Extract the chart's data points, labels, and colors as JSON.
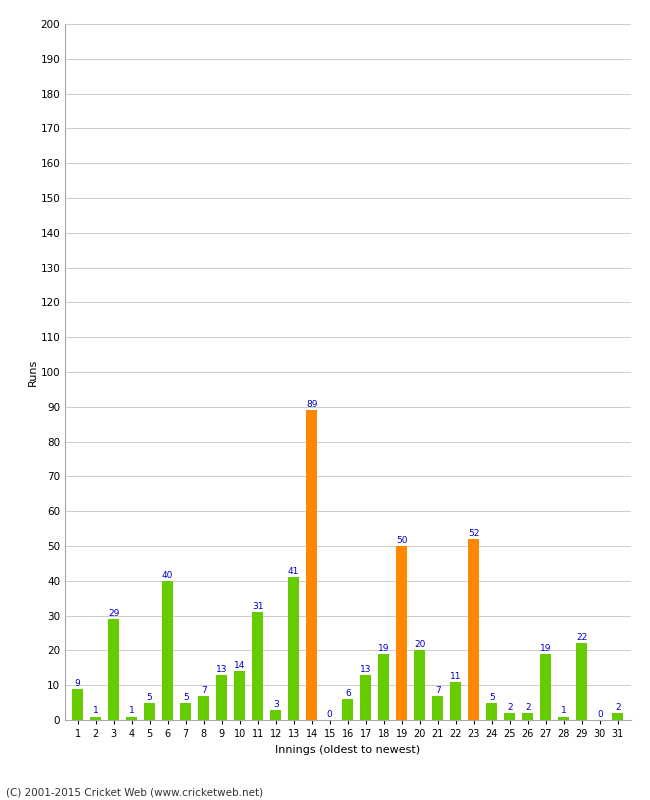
{
  "innings": [
    1,
    2,
    3,
    4,
    5,
    6,
    7,
    8,
    9,
    10,
    11,
    12,
    13,
    14,
    15,
    16,
    17,
    18,
    19,
    20,
    21,
    22,
    23,
    24,
    25,
    26,
    27,
    28,
    29,
    30,
    31
  ],
  "values": [
    9,
    1,
    29,
    1,
    5,
    40,
    5,
    7,
    13,
    14,
    31,
    3,
    41,
    89,
    0,
    6,
    13,
    19,
    50,
    20,
    7,
    11,
    52,
    5,
    2,
    2,
    19,
    1,
    22,
    0,
    2
  ],
  "colors": [
    "#66cc00",
    "#66cc00",
    "#66cc00",
    "#66cc00",
    "#66cc00",
    "#66cc00",
    "#66cc00",
    "#66cc00",
    "#66cc00",
    "#66cc00",
    "#66cc00",
    "#66cc00",
    "#66cc00",
    "#ff8800",
    "#66cc00",
    "#66cc00",
    "#66cc00",
    "#66cc00",
    "#ff8800",
    "#66cc00",
    "#66cc00",
    "#66cc00",
    "#ff8800",
    "#66cc00",
    "#66cc00",
    "#66cc00",
    "#66cc00",
    "#66cc00",
    "#66cc00",
    "#66cc00",
    "#66cc00"
  ],
  "ylabel": "Runs",
  "xlabel": "Innings (oldest to newest)",
  "ylim": [
    0,
    200
  ],
  "yticks": [
    0,
    10,
    20,
    30,
    40,
    50,
    60,
    70,
    80,
    90,
    100,
    110,
    120,
    130,
    140,
    150,
    160,
    170,
    180,
    190,
    200
  ],
  "label_color": "#0000cc",
  "bar_color_green": "#66cc00",
  "bar_color_orange": "#ff8800",
  "bg_color": "#ffffff",
  "grid_color": "#cccccc",
  "footer": "(C) 2001-2015 Cricket Web (www.cricketweb.net)"
}
